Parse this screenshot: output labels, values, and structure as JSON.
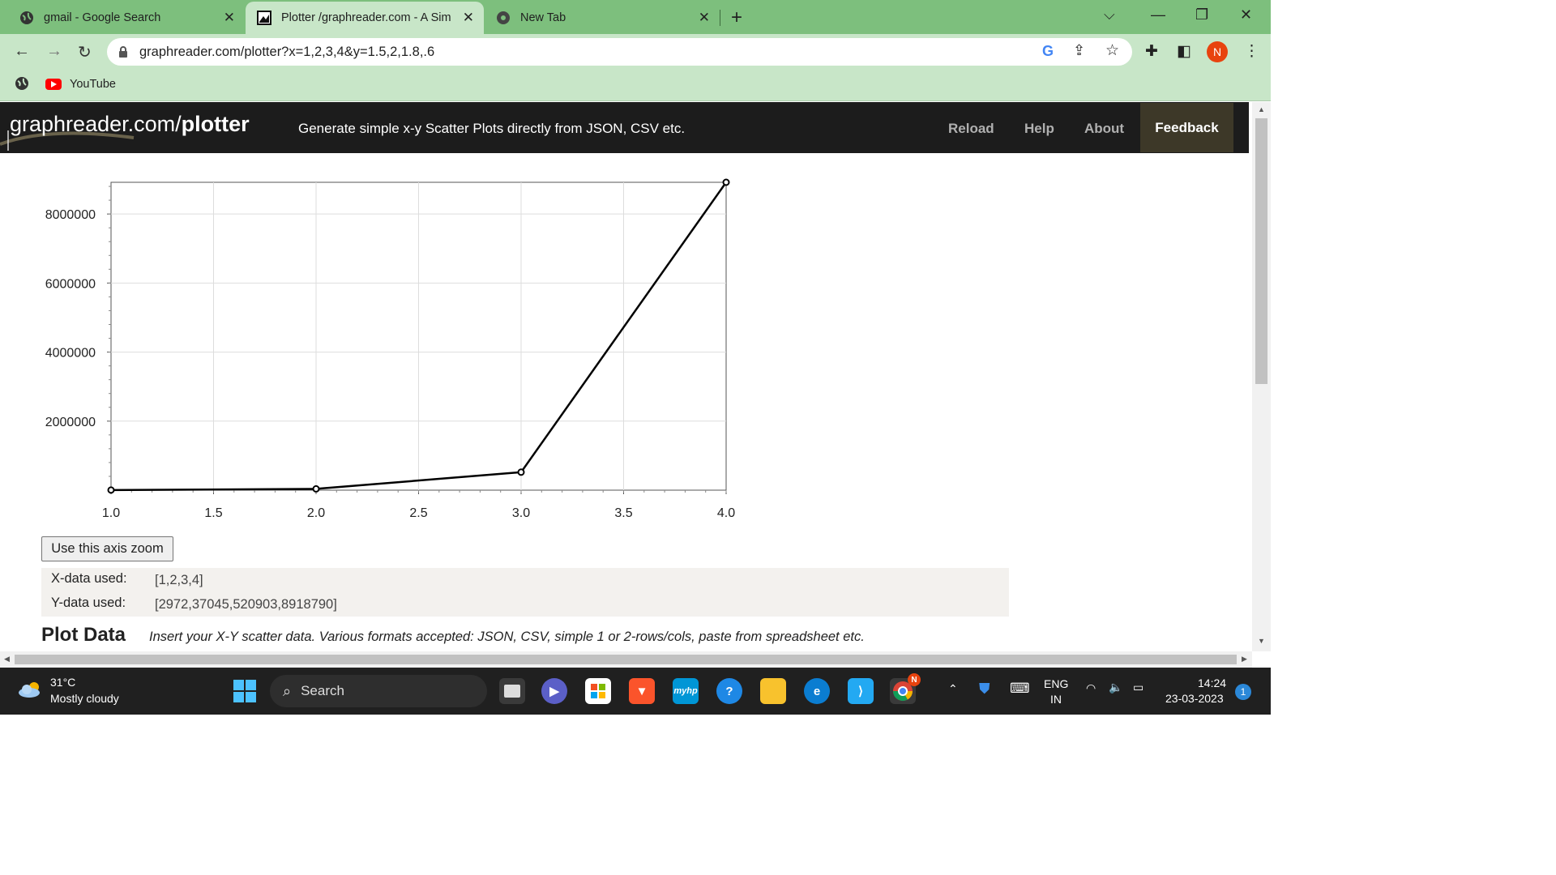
{
  "browser": {
    "tabs": [
      {
        "title": "gmail - Google Search",
        "icon": "globe-icon"
      },
      {
        "title": "Plotter /graphreader.com - A Sim",
        "icon": "graphreader-icon"
      },
      {
        "title": "New Tab",
        "icon": "chrome-icon"
      }
    ],
    "url": "graphreader.com/plotter?x=1,2,3,4&y=1.5,2,1.8,.6",
    "profile_initial": "N",
    "bookmarks": [
      {
        "label": "YouTube",
        "icon": "youtube-icon"
      }
    ]
  },
  "site": {
    "logo_plain": "graphreader.com",
    "logo_slash": "/",
    "logo_bold": "plotter",
    "tagline": "Generate simple x-y Scatter Plots directly from JSON, CSV etc.",
    "nav": {
      "reload": "Reload",
      "help": "Help",
      "about": "About",
      "feedback": "Feedback"
    }
  },
  "chart_data": {
    "type": "line",
    "x": [
      1,
      2,
      3,
      4
    ],
    "y": [
      2972,
      37045,
      520903,
      8918790
    ],
    "xlim": [
      1.0,
      4.0
    ],
    "ylim": [
      0,
      8918790
    ],
    "x_ticks": [
      "1.0",
      "1.5",
      "2.0",
      "2.5",
      "3.0",
      "3.5",
      "4.0"
    ],
    "y_ticks": [
      "2000000",
      "4000000",
      "6000000",
      "8000000"
    ],
    "grid": true,
    "title": "",
    "xlabel": "",
    "ylabel": ""
  },
  "controls": {
    "zoom_button": "Use this axis zoom",
    "x_used_label": "X-data used:",
    "x_used_value": "[1,2,3,4]",
    "y_used_label": "Y-data used:",
    "y_used_value": "[2972,37045,520903,8918790]"
  },
  "plot_data": {
    "title": "Plot Data",
    "description": "Insert your X-Y scatter data. Various formats accepted: JSON, CSV, simple 1 or 2-rows/cols, paste from spreadsheet etc."
  },
  "taskbar": {
    "temp": "31°C",
    "weather": "Mostly cloudy",
    "search": "Search",
    "lang_1": "ENG",
    "lang_2": "IN",
    "time": "14:24",
    "date": "23-03-2023",
    "notifications": "1",
    "chrome_badge": "N",
    "apps": [
      "task-view-icon",
      "chat-icon",
      "store-icon",
      "brave-icon",
      "myhp-icon",
      "help-icon",
      "file-explorer-icon",
      "edge-icon",
      "vscode-icon",
      "chrome-icon"
    ]
  }
}
